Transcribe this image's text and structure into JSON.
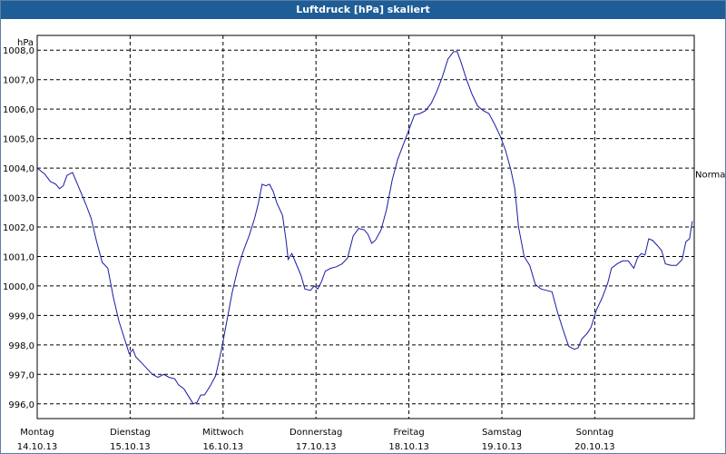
{
  "window": {
    "title": "Luftdruck [hPa] skaliert"
  },
  "chart_data": {
    "type": "line",
    "title": "Luftdruck [hPa] skaliert",
    "ylabel": "hPa",
    "ylim": [
      995.5,
      1008.5
    ],
    "grid": true,
    "y_ticks": [
      "996,0",
      "997,0",
      "998,0",
      "999,0",
      "1000,0",
      "1001,0",
      "1002,0",
      "1003,0",
      "1004,0",
      "1005,0",
      "1006,0",
      "1007,0",
      "1008,0"
    ],
    "y_tick_values": [
      996,
      997,
      998,
      999,
      1000,
      1001,
      1002,
      1003,
      1004,
      1005,
      1006,
      1007,
      1008
    ],
    "x_days": [
      {
        "day": "Montag",
        "date": "14.10.13"
      },
      {
        "day": "Dienstag",
        "date": "15.10.13"
      },
      {
        "day": "Mittwoch",
        "date": "16.10.13"
      },
      {
        "day": "Donnerstag",
        "date": "17.10.13"
      },
      {
        "day": "Freitag",
        "date": "18.10.13"
      },
      {
        "day": "Samstag",
        "date": "19.10.13"
      },
      {
        "day": "Sonntag",
        "date": "20.10.13"
      }
    ],
    "reference_line": {
      "label": "Normal",
      "value": 1003.8
    },
    "x_range_days": [
      0,
      7.05
    ],
    "series": [
      {
        "color": "#1a1aa6",
        "points": [
          [
            0.0,
            1004.0
          ],
          [
            0.08,
            1003.8
          ],
          [
            0.14,
            1003.55
          ],
          [
            0.2,
            1003.45
          ],
          [
            0.24,
            1003.3
          ],
          [
            0.28,
            1003.4
          ],
          [
            0.32,
            1003.75
          ],
          [
            0.38,
            1003.85
          ],
          [
            0.44,
            1003.4
          ],
          [
            0.52,
            1002.8
          ],
          [
            0.58,
            1002.3
          ],
          [
            0.64,
            1001.5
          ],
          [
            0.7,
            1000.8
          ],
          [
            0.76,
            1000.6
          ],
          [
            0.82,
            999.6
          ],
          [
            0.88,
            998.8
          ],
          [
            0.94,
            998.2
          ],
          [
            0.99,
            997.7
          ],
          [
            1.03,
            997.85
          ],
          [
            1.06,
            997.6
          ],
          [
            1.12,
            997.4
          ],
          [
            1.18,
            997.2
          ],
          [
            1.24,
            997.0
          ],
          [
            1.3,
            996.9
          ],
          [
            1.36,
            997.0
          ],
          [
            1.42,
            996.9
          ],
          [
            1.48,
            996.85
          ],
          [
            1.52,
            996.65
          ],
          [
            1.58,
            996.5
          ],
          [
            1.64,
            996.2
          ],
          [
            1.68,
            996.0
          ],
          [
            1.72,
            996.05
          ],
          [
            1.76,
            996.3
          ],
          [
            1.8,
            996.3
          ],
          [
            1.86,
            996.6
          ],
          [
            1.92,
            996.95
          ],
          [
            1.98,
            997.8
          ],
          [
            2.04,
            998.8
          ],
          [
            2.1,
            999.8
          ],
          [
            2.16,
            1000.6
          ],
          [
            2.22,
            1001.2
          ],
          [
            2.28,
            1001.7
          ],
          [
            2.34,
            1002.3
          ],
          [
            2.38,
            1002.8
          ],
          [
            2.42,
            1003.45
          ],
          [
            2.46,
            1003.4
          ],
          [
            2.5,
            1003.45
          ],
          [
            2.54,
            1003.2
          ],
          [
            2.58,
            1002.8
          ],
          [
            2.64,
            1002.4
          ],
          [
            2.68,
            1001.5
          ],
          [
            2.7,
            1000.9
          ],
          [
            2.74,
            1001.1
          ],
          [
            2.78,
            1000.8
          ],
          [
            2.84,
            1000.35
          ],
          [
            2.88,
            999.9
          ],
          [
            2.94,
            999.85
          ],
          [
            2.98,
            1000.0
          ],
          [
            3.02,
            999.9
          ],
          [
            3.06,
            1000.15
          ],
          [
            3.1,
            1000.5
          ],
          [
            3.16,
            1000.6
          ],
          [
            3.22,
            1000.65
          ],
          [
            3.28,
            1000.75
          ],
          [
            3.34,
            1000.95
          ],
          [
            3.4,
            1001.7
          ],
          [
            3.46,
            1001.95
          ],
          [
            3.52,
            1001.9
          ],
          [
            3.56,
            1001.75
          ],
          [
            3.6,
            1001.45
          ],
          [
            3.64,
            1001.55
          ],
          [
            3.7,
            1001.9
          ],
          [
            3.76,
            1002.6
          ],
          [
            3.82,
            1003.6
          ],
          [
            3.88,
            1004.3
          ],
          [
            3.94,
            1004.8
          ],
          [
            4.0,
            1005.3
          ],
          [
            4.06,
            1005.8
          ],
          [
            4.12,
            1005.85
          ],
          [
            4.18,
            1005.95
          ],
          [
            4.24,
            1006.2
          ],
          [
            4.3,
            1006.6
          ],
          [
            4.36,
            1007.1
          ],
          [
            4.42,
            1007.7
          ],
          [
            4.48,
            1007.95
          ],
          [
            4.52,
            1007.95
          ],
          [
            4.56,
            1007.6
          ],
          [
            4.62,
            1007.0
          ],
          [
            4.68,
            1006.5
          ],
          [
            4.74,
            1006.1
          ],
          [
            4.8,
            1005.95
          ],
          [
            4.86,
            1005.85
          ],
          [
            4.92,
            1005.5
          ],
          [
            4.98,
            1005.1
          ],
          [
            5.04,
            1004.6
          ],
          [
            5.1,
            1003.9
          ],
          [
            5.14,
            1003.3
          ],
          [
            5.18,
            1002.0
          ],
          [
            5.24,
            1001.0
          ],
          [
            5.3,
            1000.7
          ],
          [
            5.36,
            1000.05
          ],
          [
            5.42,
            999.9
          ],
          [
            5.48,
            999.85
          ],
          [
            5.54,
            999.8
          ],
          [
            5.6,
            999.1
          ],
          [
            5.66,
            998.5
          ],
          [
            5.72,
            997.95
          ],
          [
            5.78,
            997.85
          ],
          [
            5.82,
            997.9
          ],
          [
            5.86,
            998.2
          ],
          [
            5.92,
            998.4
          ],
          [
            5.96,
            998.6
          ],
          [
            6.02,
            999.2
          ],
          [
            6.08,
            999.6
          ],
          [
            6.14,
            1000.1
          ],
          [
            6.18,
            1000.6
          ],
          [
            6.24,
            1000.75
          ],
          [
            6.3,
            1000.85
          ],
          [
            6.36,
            1000.85
          ],
          [
            6.42,
            1000.6
          ],
          [
            6.46,
            1000.95
          ],
          [
            6.5,
            1001.1
          ],
          [
            6.54,
            1001.05
          ],
          [
            6.58,
            1001.6
          ],
          [
            6.62,
            1001.55
          ],
          [
            6.68,
            1001.35
          ],
          [
            6.72,
            1001.2
          ],
          [
            6.76,
            1000.75
          ],
          [
            6.82,
            1000.7
          ],
          [
            6.88,
            1000.7
          ],
          [
            6.94,
            1000.9
          ],
          [
            6.98,
            1001.5
          ],
          [
            7.02,
            1001.6
          ],
          [
            7.05,
            1002.2
          ]
        ]
      }
    ]
  }
}
